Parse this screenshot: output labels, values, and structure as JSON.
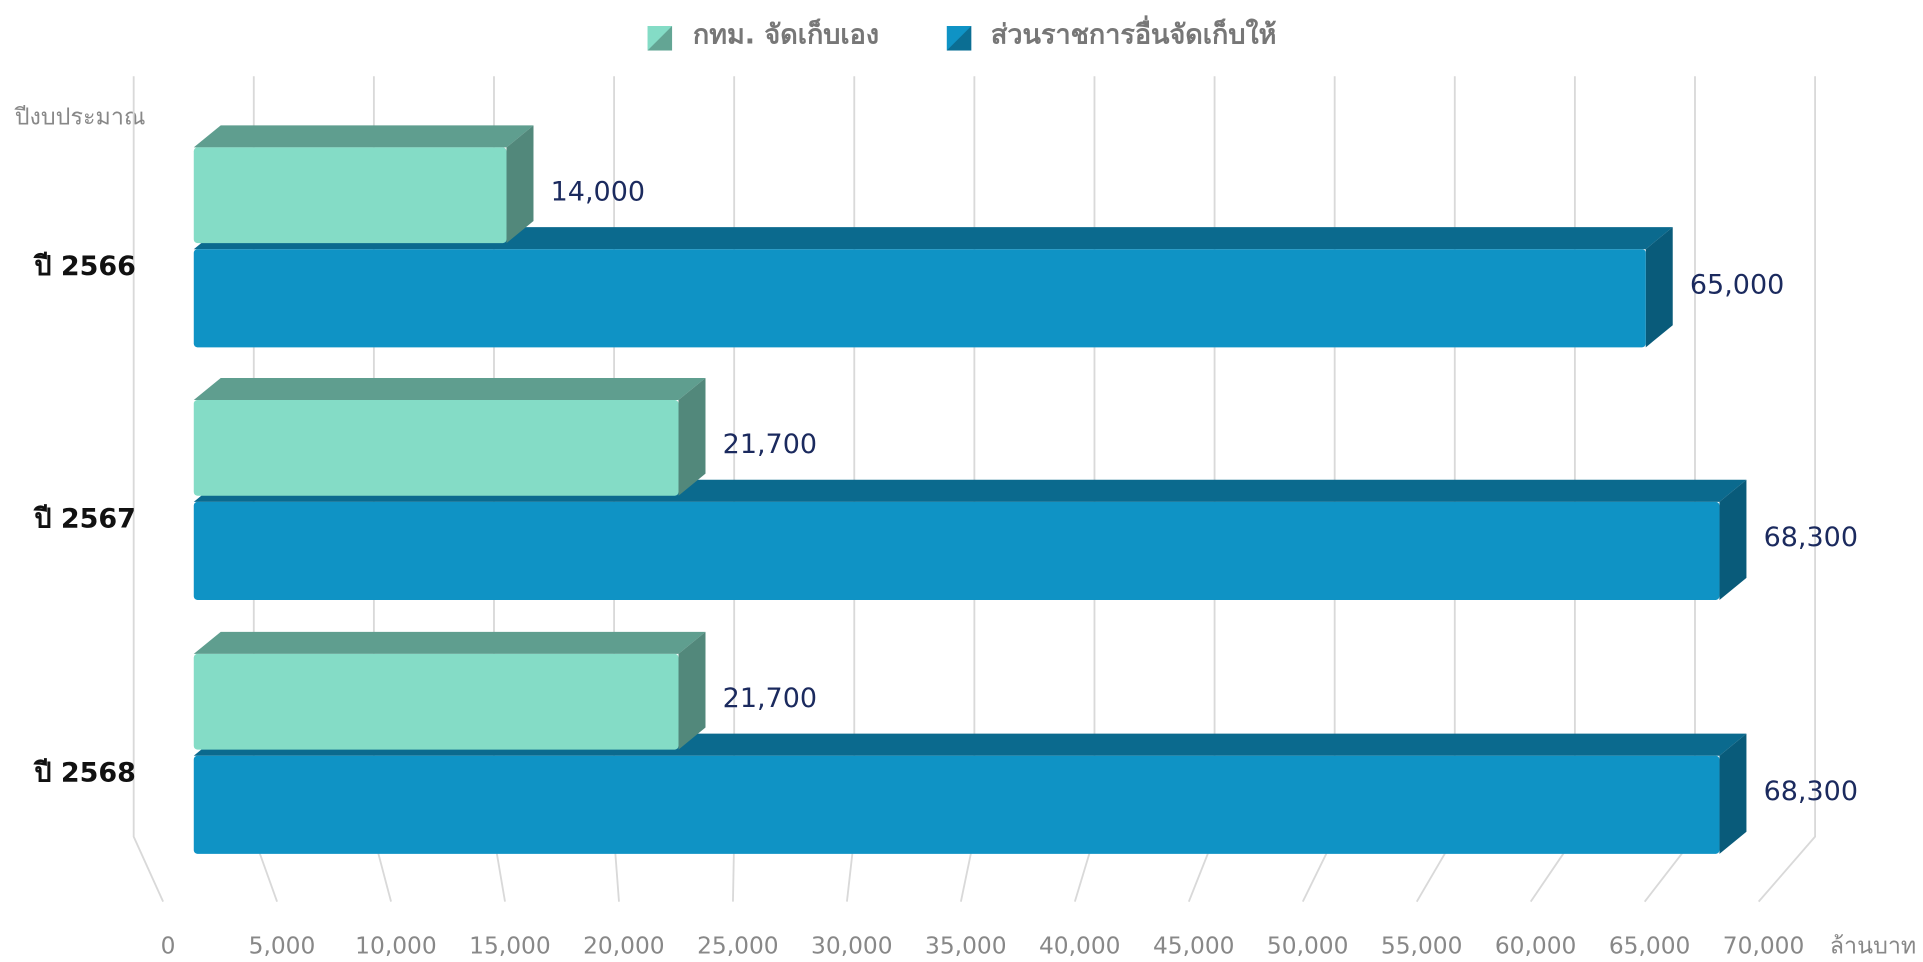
{
  "chart_data": {
    "type": "bar3d",
    "orientation": "horizontal",
    "y_label": "ปีงบประมาณ",
    "x_label": "ล้านบาท",
    "categories": [
      "ปี 2566",
      "ปี 2567",
      "ปี 2568"
    ],
    "series": [
      {
        "name": "กทม. จัดเก็บเอง",
        "color": "#84dcc6",
        "values": [
          14000,
          21700,
          21700
        ],
        "value_labels": [
          "14,000",
          "21,700",
          "21,700"
        ]
      },
      {
        "name": "ส่วนราชการอื่นจัดเก็บให้",
        "color": "#0f93c5",
        "values": [
          65000,
          68300,
          68300
        ],
        "value_labels": [
          "65,000",
          "68,300",
          "68,300"
        ]
      }
    ],
    "xlim": [
      0,
      70000
    ],
    "xticks": [
      0,
      {
        "value": 5000,
        "label": "5,000"
      },
      {
        "value": 10000,
        "label": "10,000"
      },
      {
        "value": 15000,
        "label": "15,000"
      },
      {
        "value": 20000,
        "label": "20,000"
      },
      {
        "value": 25000,
        "label": "25,000"
      },
      {
        "value": 30000,
        "label": "30,000"
      },
      {
        "value": 35000,
        "label": "35,000"
      },
      {
        "value": 40000,
        "label": "40,000"
      },
      {
        "value": 45000,
        "label": "45,000"
      },
      {
        "value": 50000,
        "label": "50,000"
      },
      {
        "value": 55000,
        "label": "55,000"
      },
      {
        "value": 60000,
        "label": "60,000"
      },
      {
        "value": 65000,
        "label": "65,000"
      },
      {
        "value": 70000,
        "label": "70,000"
      }
    ],
    "grid": true,
    "legend": "top"
  }
}
